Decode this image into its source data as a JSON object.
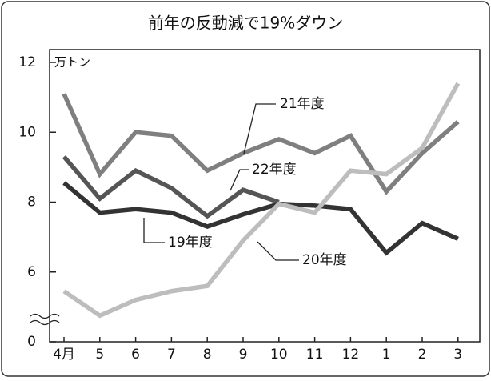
{
  "chart_data": {
    "type": "line",
    "title": "前年の反動減で19%ダウン",
    "y_unit": "万トン",
    "categories": [
      "4月",
      "5",
      "6",
      "7",
      "8",
      "9",
      "10",
      "11",
      "12",
      "1",
      "2",
      "3"
    ],
    "series": [
      {
        "name": "21年度",
        "color": "#7f7f7f",
        "values": [
          11.1,
          8.8,
          10.0,
          9.9,
          8.9,
          9.4,
          9.8,
          9.4,
          9.9,
          8.3,
          9.4,
          10.3
        ]
      },
      {
        "name": "22年度",
        "color": "#555555",
        "values": [
          9.3,
          8.1,
          8.9,
          8.4,
          7.6,
          8.35,
          8.0,
          null,
          null,
          null,
          null,
          null
        ]
      },
      {
        "name": "19年度",
        "color": "#333333",
        "values": [
          8.55,
          7.7,
          7.8,
          7.7,
          7.3,
          7.65,
          7.95,
          7.9,
          7.8,
          6.55,
          7.4,
          6.95
        ]
      },
      {
        "name": "20年度",
        "color": "#bdbdbd",
        "values": [
          5.45,
          4.75,
          5.2,
          5.45,
          5.6,
          6.9,
          7.95,
          7.7,
          8.9,
          8.8,
          9.55,
          11.4
        ]
      }
    ],
    "ylim": [
      4,
      12
    ],
    "yticks": [
      0,
      6,
      8,
      10,
      12
    ],
    "y_break": true
  }
}
